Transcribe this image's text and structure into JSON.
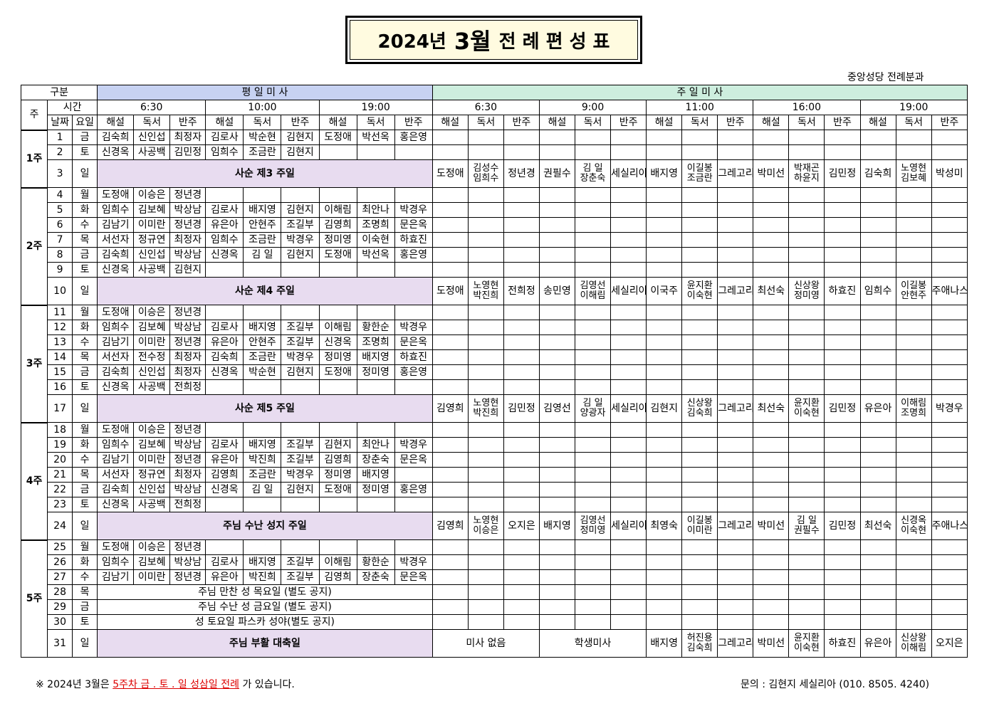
{
  "title": {
    "year": "2024년",
    "month": "3월",
    "rest": "전 례 편 성 표"
  },
  "dept": "중앙성당 전례분과",
  "header": {
    "gubun": "구분",
    "week": "주",
    "time": "시간",
    "date": "날짜",
    "dow": "요일",
    "weekday_mass": "평 일 미 사",
    "sunday_mass": "주 일 미 사",
    "weekday_times": [
      "6:30",
      "10:00",
      "19:00"
    ],
    "sunday_times": [
      "6:30",
      "9:00",
      "11:00",
      "16:00",
      "19:00"
    ],
    "roles": [
      "해설",
      "독서",
      "반주"
    ]
  },
  "weeks": [
    {
      "label": "1주",
      "rows": [
        {
          "d": "1",
          "w": "금",
          "c": [
            "김숙희",
            "신인섭",
            "최정자",
            "김로사",
            "박순현",
            "김현지",
            "도정애",
            "박선옥",
            "홍은영"
          ]
        },
        {
          "d": "2",
          "w": "토",
          "c": [
            "신경옥",
            "사공백",
            "김민정",
            "임희수",
            "조금란",
            "김현지",
            "",
            "",
            ""
          ]
        },
        {
          "d": "3",
          "w": "일",
          "sun": "사순 제3 주일",
          "s": [
            "도정애",
            "김성수|임희수",
            "정년경",
            "권필수",
            "김 일|장춘숙",
            "세실리아",
            "배지영",
            "이길봉|조금란",
            "그레고리오",
            "박미선",
            "박재곤|하윤지",
            "김민정",
            "김숙희",
            "노영현|김보혜",
            "박성미"
          ]
        }
      ]
    },
    {
      "label": "2주",
      "rows": [
        {
          "d": "4",
          "w": "월",
          "c": [
            "도정애",
            "이승은",
            "정년경",
            "",
            "",
            "",
            "",
            "",
            ""
          ]
        },
        {
          "d": "5",
          "w": "화",
          "c": [
            "임희수",
            "김보혜",
            "박상남",
            "김로사",
            "배지영",
            "김현지",
            "이해림",
            "최안나",
            "박경우"
          ]
        },
        {
          "d": "6",
          "w": "수",
          "c": [
            "김남기",
            "이미란",
            "정년경",
            "유은아",
            "안현주",
            "조길부",
            "김영희",
            "조명희",
            "문은옥"
          ]
        },
        {
          "d": "7",
          "w": "목",
          "c": [
            "서선자",
            "정규연",
            "최정자",
            "임희수",
            "조금란",
            "박경우",
            "정미영",
            "이숙현",
            "하효진"
          ]
        },
        {
          "d": "8",
          "w": "금",
          "c": [
            "김숙희",
            "신인섭",
            "박상남",
            "신경옥",
            "김 일",
            "김현지",
            "도정애",
            "박선옥",
            "홍은영"
          ]
        },
        {
          "d": "9",
          "w": "토",
          "c": [
            "신경옥",
            "사공백",
            "김현지",
            "",
            "",
            "",
            "",
            "",
            ""
          ]
        },
        {
          "d": "10",
          "w": "일",
          "sun": "사순 제4 주일",
          "s": [
            "도정애",
            "노영현|박진희",
            "전희정",
            "송민영",
            "김영선|이해림",
            "세실리아",
            "이국주",
            "윤지환|이숙현",
            "그레고리오",
            "최선숙",
            "신상왕|정미영",
            "하효진",
            "임희수",
            "이길봉|안현주",
            "주애나스"
          ]
        }
      ]
    },
    {
      "label": "3주",
      "rows": [
        {
          "d": "11",
          "w": "월",
          "c": [
            "도정애",
            "이승은",
            "정년경",
            "",
            "",
            "",
            "",
            "",
            ""
          ]
        },
        {
          "d": "12",
          "w": "화",
          "c": [
            "임희수",
            "김보혜",
            "박상남",
            "김로사",
            "배지영",
            "조길부",
            "이해림",
            "황한순",
            "박경우"
          ]
        },
        {
          "d": "13",
          "w": "수",
          "c": [
            "김남기",
            "이미란",
            "정년경",
            "유은아",
            "안현주",
            "조길부",
            "신경옥",
            "조명희",
            "문은옥"
          ]
        },
        {
          "d": "14",
          "w": "목",
          "c": [
            "서선자",
            "전수정",
            "최정자",
            "김숙희",
            "조금란",
            "박경우",
            "정미영",
            "배지영",
            "하효진"
          ]
        },
        {
          "d": "15",
          "w": "금",
          "c": [
            "김숙희",
            "신인섭",
            "최정자",
            "신경옥",
            "박순현",
            "김현지",
            "도정애",
            "정미영",
            "홍은영"
          ]
        },
        {
          "d": "16",
          "w": "토",
          "c": [
            "신경옥",
            "사공백",
            "전희정",
            "",
            "",
            "",
            "",
            "",
            ""
          ]
        },
        {
          "d": "17",
          "w": "일",
          "sun": "사순 제5 주일",
          "s": [
            "김영희",
            "노영현|박진희",
            "김민정",
            "김영선",
            "김 일|양광자",
            "세실리아",
            "김현지",
            "신상왕|김숙희",
            "그레고리오",
            "최선숙",
            "윤지환|이숙현",
            "김민정",
            "유은아",
            "이해림|조명희",
            "박경우"
          ]
        }
      ]
    },
    {
      "label": "4주",
      "rows": [
        {
          "d": "18",
          "w": "월",
          "c": [
            "도정애",
            "이승은",
            "정년경",
            "",
            "",
            "",
            "",
            "",
            ""
          ]
        },
        {
          "d": "19",
          "w": "화",
          "c": [
            "임희수",
            "김보혜",
            "박상남",
            "김로사",
            "배지영",
            "조길부",
            "김현지",
            "최안나",
            "박경우"
          ]
        },
        {
          "d": "20",
          "w": "수",
          "c": [
            "김남기",
            "이미란",
            "정년경",
            "유은아",
            "박진희",
            "조길부",
            "김영희",
            "장춘숙",
            "문은옥"
          ]
        },
        {
          "d": "21",
          "w": "목",
          "c": [
            "서선자",
            "정규연",
            "최정자",
            "김영희",
            "조금란",
            "박경우",
            "정미영",
            "배지영",
            ""
          ]
        },
        {
          "d": "22",
          "w": "금",
          "c": [
            "김숙희",
            "신인섭",
            "박상남",
            "신경옥",
            "김 일",
            "김현지",
            "도정애",
            "정미영",
            "홍은영"
          ]
        },
        {
          "d": "23",
          "w": "토",
          "c": [
            "신경옥",
            "사공백",
            "전희정",
            "",
            "",
            "",
            "",
            "",
            ""
          ]
        },
        {
          "d": "24",
          "w": "일",
          "sun": "주님 수난 성지 주일",
          "s": [
            "김영희",
            "노영현|이승은",
            "오지은",
            "배지영",
            "김영선|정미영",
            "세실리아",
            "최영숙",
            "이길봉|이미란",
            "그레고리오",
            "박미선",
            "김 일|권필수",
            "김민정",
            "최선숙",
            "신경옥|이숙현",
            "주애나스"
          ]
        }
      ]
    },
    {
      "label": "5주",
      "rows": [
        {
          "d": "25",
          "w": "월",
          "c": [
            "도정애",
            "이승은",
            "정년경",
            "",
            "",
            "",
            "",
            "",
            ""
          ]
        },
        {
          "d": "26",
          "w": "화",
          "c": [
            "임희수",
            "김보혜",
            "박상남",
            "김로사",
            "배지영",
            "조길부",
            "이해림",
            "황한순",
            "박경우"
          ]
        },
        {
          "d": "27",
          "w": "수",
          "c": [
            "김남기",
            "이미란",
            "정년경",
            "유은아",
            "박진희",
            "조길부",
            "김영희",
            "장춘숙",
            "문은옥"
          ]
        },
        {
          "d": "28",
          "w": "목",
          "hol": "주님 만찬 성 목요일  (별도 공지)"
        },
        {
          "d": "29",
          "w": "금",
          "hol": "주님 수난 성 금요일  (별도 공지)"
        },
        {
          "d": "30",
          "w": "토",
          "hol": "성 토요일 파스카 성야(별도 공지)"
        },
        {
          "d": "31",
          "w": "일",
          "sun": "주님 부활 대축일",
          "easter": {
            "no_mass": "미사 없음",
            "student": "학생미사"
          },
          "s": [
            "",
            "",
            "",
            "",
            "",
            "",
            "배지영",
            "허진용|김숙희",
            "그레고리오",
            "박미선",
            "윤지환|이숙현",
            "하효진",
            "유은아",
            "신상왕|이해림",
            "오지은"
          ]
        }
      ]
    }
  ],
  "footer": {
    "note_prefix": "※  2024년  3월은  ",
    "note_red": "5주차 금  . 토 . 일  성삼일 전례",
    "note_suffix": " 가  있습니다.",
    "contact": "문의 :  김현지  세실리아  (010. 8505. 4240)"
  }
}
